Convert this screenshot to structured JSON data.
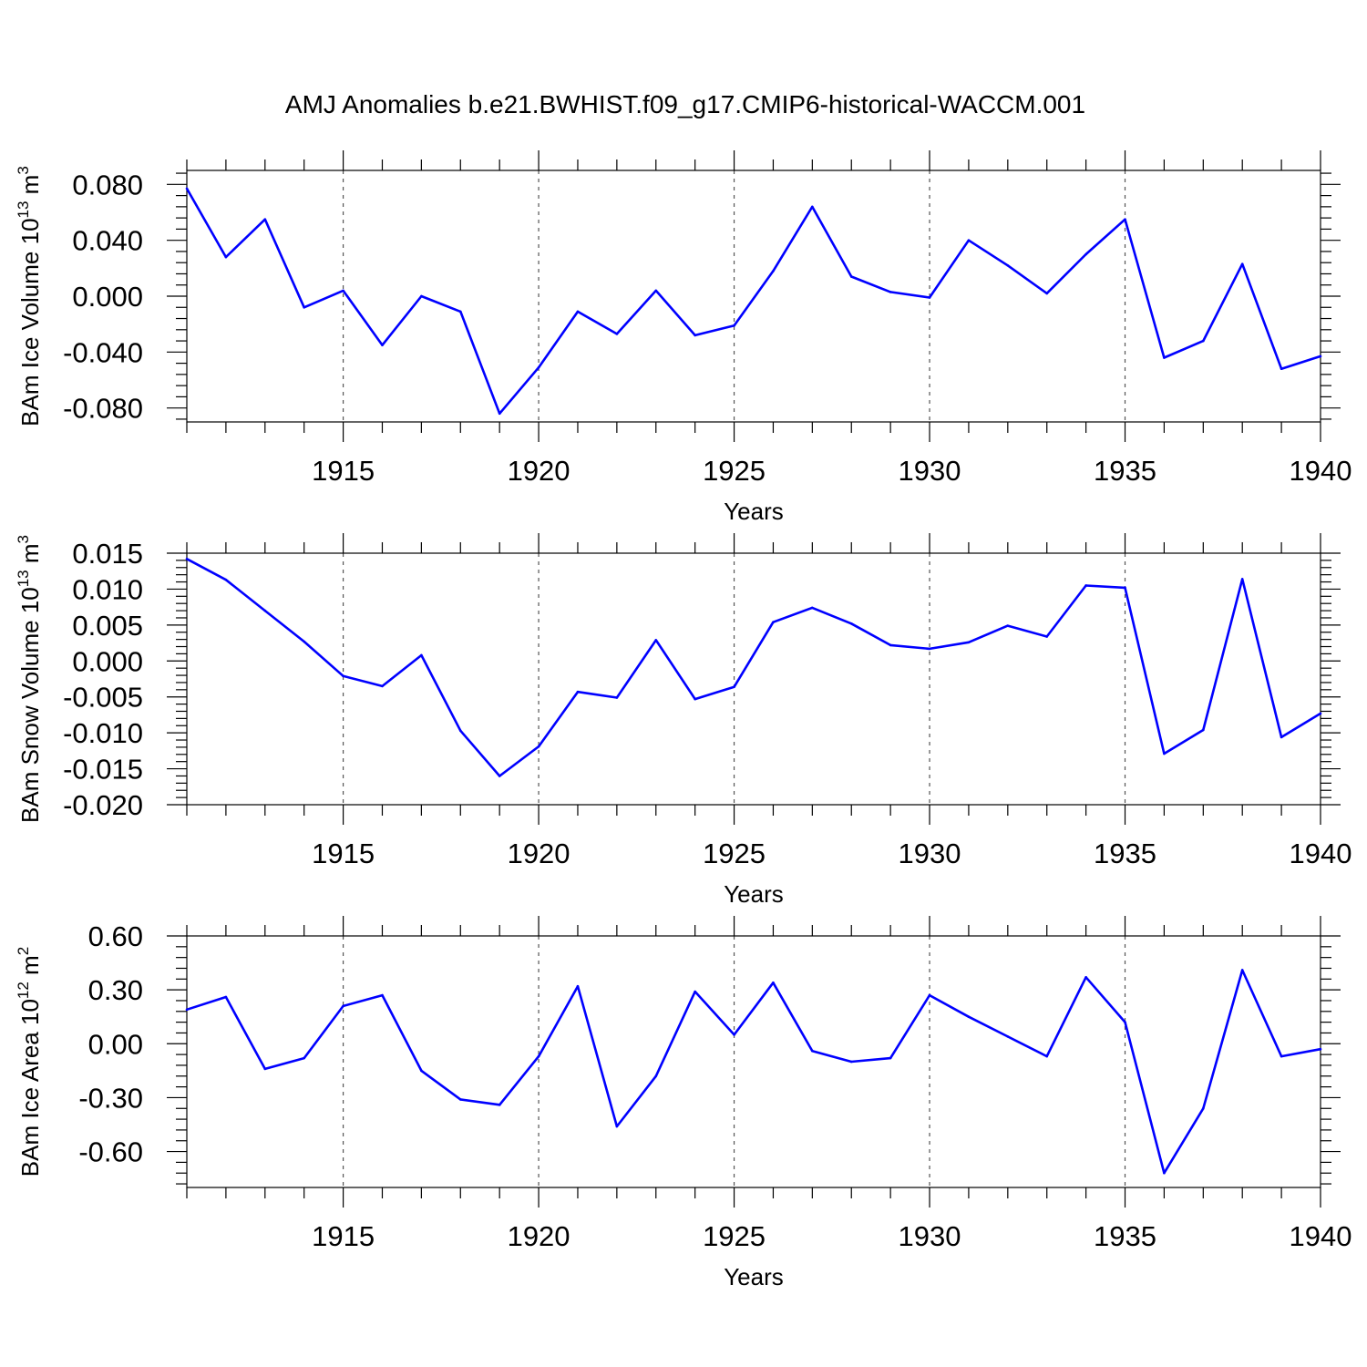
{
  "chart_data": [
    {
      "type": "line",
      "title": "AMJ Anomalies b.e21.BWHIST.f09_g17.CMIP6-historical-WACCM.001",
      "xlabel": "Years",
      "ylabel": {
        "base": "BAm Ice Volume 10",
        "exp": "13",
        "unit": " m",
        "unit_exp": "3"
      },
      "xlim": [
        1911,
        1940
      ],
      "ylim": [
        -0.09,
        0.09
      ],
      "xticks": [
        1915,
        1920,
        1925,
        1930,
        1935,
        1940
      ],
      "yticks": [
        -0.08,
        -0.04,
        0.0,
        0.04,
        0.08
      ],
      "ytick_labels": [
        "-0.080",
        "-0.040",
        "0.000",
        "0.040",
        "0.080"
      ],
      "grid": "vertical dashed at major x ticks",
      "color": "#0000ff",
      "x": [
        1911,
        1912,
        1913,
        1914,
        1915,
        1916,
        1917,
        1918,
        1919,
        1920,
        1921,
        1922,
        1923,
        1924,
        1925,
        1926,
        1927,
        1928,
        1929,
        1930,
        1931,
        1932,
        1933,
        1934,
        1935,
        1936,
        1937,
        1938,
        1939,
        1940
      ],
      "values": [
        0.077,
        0.028,
        0.055,
        -0.008,
        0.004,
        -0.035,
        0.0,
        -0.011,
        -0.084,
        -0.051,
        -0.011,
        -0.027,
        0.004,
        -0.028,
        -0.021,
        0.018,
        0.064,
        0.014,
        0.003,
        -0.001,
        0.04,
        0.022,
        0.002,
        0.03,
        0.055,
        -0.044,
        -0.032,
        0.023,
        -0.052,
        -0.043
      ]
    },
    {
      "type": "line",
      "title": "",
      "xlabel": "Years",
      "ylabel": {
        "base": "BAm Snow Volume 10",
        "exp": "13",
        "unit": " m",
        "unit_exp": "3"
      },
      "xlim": [
        1911,
        1940
      ],
      "ylim": [
        -0.02,
        0.015
      ],
      "xticks": [
        1915,
        1920,
        1925,
        1930,
        1935,
        1940
      ],
      "yticks": [
        -0.02,
        -0.015,
        -0.01,
        -0.005,
        0.0,
        0.005,
        0.01,
        0.015
      ],
      "ytick_labels": [
        "-0.020",
        "-0.015",
        "-0.010",
        "-0.005",
        "0.000",
        "0.005",
        "0.010",
        "0.015"
      ],
      "grid": "vertical dashed at major x ticks",
      "color": "#0000ff",
      "x": [
        1911,
        1912,
        1913,
        1914,
        1915,
        1916,
        1917,
        1918,
        1919,
        1920,
        1921,
        1922,
        1923,
        1924,
        1925,
        1926,
        1927,
        1928,
        1929,
        1930,
        1931,
        1932,
        1933,
        1934,
        1935,
        1936,
        1937,
        1938,
        1939,
        1940
      ],
      "values": [
        0.0142,
        0.0113,
        0.007,
        0.0027,
        -0.0021,
        -0.0035,
        0.0008,
        -0.0097,
        -0.016,
        -0.0119,
        -0.0043,
        -0.0051,
        0.0029,
        -0.0053,
        -0.0036,
        0.0054,
        0.0074,
        0.0052,
        0.0022,
        0.0017,
        0.0026,
        0.0049,
        0.0034,
        0.0105,
        0.0102,
        -0.0129,
        -0.0096,
        0.0114,
        -0.0106,
        -0.0073
      ]
    },
    {
      "type": "line",
      "title": "",
      "xlabel": "Years",
      "ylabel": {
        "base": "BAm Ice Area 10",
        "exp": "12",
        "unit": " m",
        "unit_exp": "2"
      },
      "xlim": [
        1911,
        1940
      ],
      "ylim": [
        -0.8,
        0.6
      ],
      "xticks": [
        1915,
        1920,
        1925,
        1930,
        1935,
        1940
      ],
      "yticks": [
        -0.6,
        -0.3,
        0.0,
        0.3,
        0.6
      ],
      "ytick_labels": [
        "-0.60",
        "-0.30",
        "0.00",
        "0.30",
        "0.60"
      ],
      "grid": "vertical dashed at major x ticks",
      "color": "#0000ff",
      "x": [
        1911,
        1912,
        1913,
        1914,
        1915,
        1916,
        1917,
        1918,
        1919,
        1920,
        1921,
        1922,
        1923,
        1924,
        1925,
        1926,
        1927,
        1928,
        1929,
        1930,
        1931,
        1932,
        1933,
        1934,
        1935,
        1936,
        1937,
        1938,
        1939,
        1940
      ],
      "values": [
        0.19,
        0.26,
        -0.14,
        -0.08,
        0.21,
        0.27,
        -0.15,
        -0.31,
        -0.34,
        -0.07,
        0.32,
        -0.46,
        -0.18,
        0.29,
        0.05,
        0.34,
        -0.04,
        -0.1,
        -0.08,
        0.27,
        0.15,
        0.04,
        -0.07,
        0.37,
        0.12,
        -0.72,
        -0.36,
        0.41,
        -0.07,
        -0.03
      ]
    }
  ]
}
